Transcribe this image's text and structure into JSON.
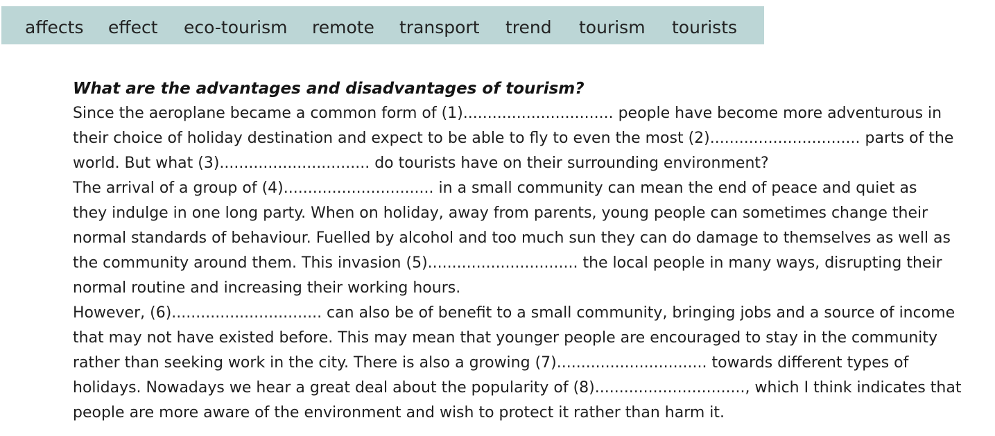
{
  "word_box": {
    "words": [
      "affects",
      "effect",
      "eco-tourism",
      "remote",
      "transport",
      "trend",
      "tourism",
      "tourists"
    ]
  },
  "passage": {
    "heading": "What are the advantages and disadvantages of tourism?",
    "lines": [
      "Since the aeroplane became a common form of (1)............................... people have become more adventurous in",
      "their choice of holiday destination and expect to be able to fly to even the most (2)............................... parts of the",
      "world. But what (3)............................... do tourists have on their surrounding environment?",
      "The arrival of a group of (4)............................... in a small community can mean the end of peace and quiet as",
      "they indulge in one long party. When on holiday, away from parents, young people can sometimes change their",
      "normal standards of behaviour. Fuelled by alcohol and too much sun they can do damage to themselves as well as",
      "the community around them. This invasion (5)............................... the local people in many ways, disrupting their",
      "normal routine and increasing their working hours.",
      "However, (6)............................... can also be of benefit to a small community, bringing jobs and a source of income",
      "that may not have existed before. This may mean that younger people are encouraged to stay in the community",
      "rather than seeking work in the city. There is also a growing (7)............................... towards different types of",
      "holidays. Nowadays we hear a great deal about the popularity of (8)..............................., which I think indicates that",
      "people are more aware of the environment and wish to protect it rather than harm it."
    ]
  },
  "colors": {
    "word_box_background": "#bcd6d6",
    "text": "#1e1e1e"
  }
}
